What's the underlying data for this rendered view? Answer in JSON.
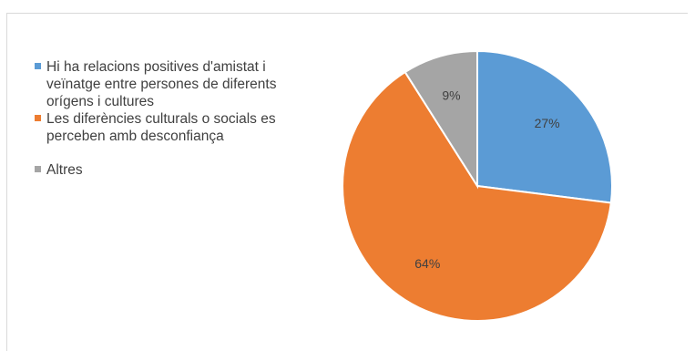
{
  "chart_data": {
    "type": "pie",
    "title": "",
    "categories": [
      "Hi ha relacions positives d'amistat i veïnatge entre persones de diferents orígens i cultures",
      "Les diferències culturals o socials es perceben amb desconfiança",
      "Altres"
    ],
    "values": [
      27,
      64,
      9
    ],
    "data_labels": [
      "27%",
      "64%",
      "9%"
    ],
    "colors": [
      "#5b9bd5",
      "#ed7d31",
      "#a5a5a5"
    ],
    "legend_position": "left"
  }
}
